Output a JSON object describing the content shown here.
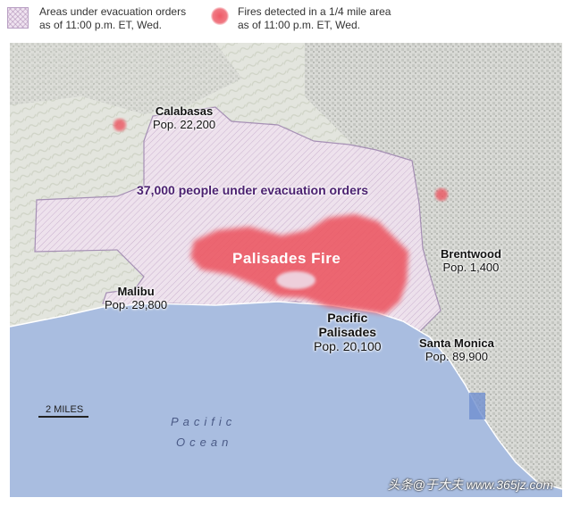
{
  "legend": {
    "evacuation_label": "Areas under evacuation orders as of 11:00 p.m. ET, Wed.",
    "evacuation_line1": "Areas under evacuation orders",
    "evacuation_line2": "as of 11:00 p.m. ET, Wed.",
    "fires_line1": "Fires detected in a 1/4 mile area",
    "fires_line2": "as of 11:00 p.m. ET, Wed."
  },
  "map": {
    "headline": "37,000 people under evacuation orders",
    "fire_name": "Palisades Fire",
    "places": [
      {
        "name": "Calabasas",
        "pop": "Pop. 22,200"
      },
      {
        "name": "Malibu",
        "pop": "Pop. 29,800"
      },
      {
        "name": "Brentwood",
        "pop": "Pop. 1,400"
      },
      {
        "name": "Pacific",
        "name2": "Palisades",
        "pop": "Pop. 20,100"
      },
      {
        "name": "Santa Monica",
        "pop": "Pop. 89,900"
      }
    ],
    "ocean_line1": "Pacific",
    "ocean_line2": "Ocean",
    "scale_label": "2 MILES"
  },
  "colors": {
    "ocean": "#a9bde0",
    "land": "#e8e9e4",
    "evacuation_fill": "#efe3ef",
    "evacuation_stroke": "#a38cb3",
    "fire": "#ec5561",
    "headline": "#4b2170"
  },
  "watermark": "头条@于大夫 www.365jz.com"
}
